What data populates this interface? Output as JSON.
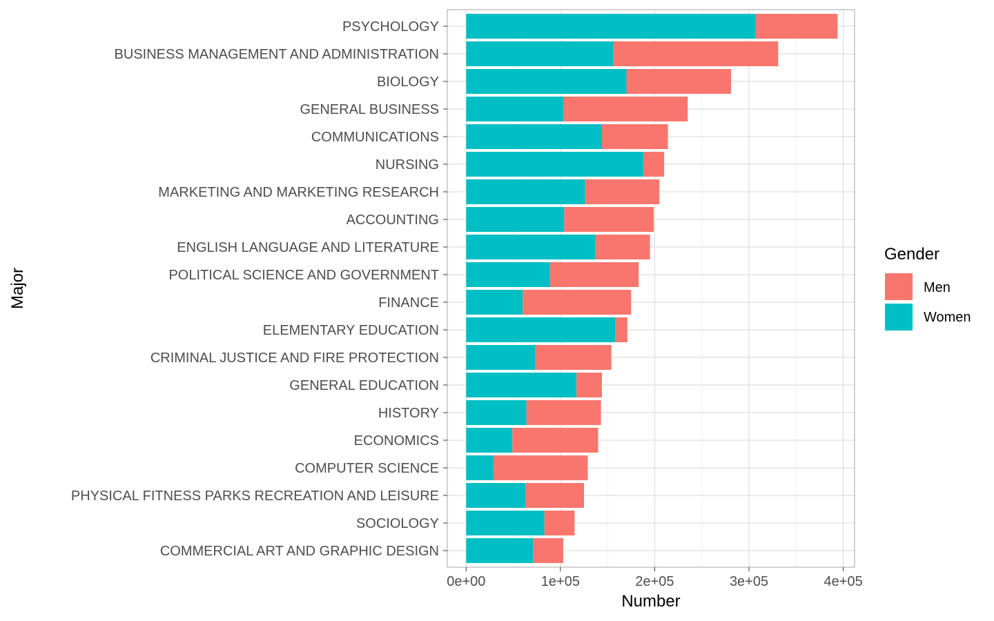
{
  "chart_data": {
    "type": "bar",
    "orientation": "horizontal",
    "stacked": true,
    "categories": [
      "PSYCHOLOGY",
      "BUSINESS MANAGEMENT AND ADMINISTRATION",
      "BIOLOGY",
      "GENERAL BUSINESS",
      "COMMUNICATIONS",
      "NURSING",
      "MARKETING AND MARKETING RESEARCH",
      "ACCOUNTING",
      "ENGLISH LANGUAGE AND LITERATURE",
      "POLITICAL SCIENCE AND GOVERNMENT",
      "FINANCE",
      "ELEMENTARY EDUCATION",
      "CRIMINAL JUSTICE AND FIRE PROTECTION",
      "GENERAL EDUCATION",
      "HISTORY",
      "ECONOMICS",
      "COMPUTER SCIENCE",
      "PHYSICAL FITNESS PARKS RECREATION AND LEISURE",
      "SOCIOLOGY",
      "COMMERCIAL ART AND GRAPHIC DESIGN"
    ],
    "series": [
      {
        "name": "Women",
        "color": "#00BFC4",
        "values": [
          307000,
          156000,
          170000,
          103000,
          144000,
          188000,
          126000,
          104000,
          137000,
          89000,
          60000,
          158000,
          73000,
          117000,
          64000,
          49000,
          29000,
          63000,
          83000,
          71000
        ]
      },
      {
        "name": "Men",
        "color": "#F8766D",
        "values": [
          87000,
          175000,
          111000,
          132000,
          70000,
          22000,
          79000,
          95000,
          58000,
          94000,
          115000,
          13000,
          81000,
          27000,
          79000,
          91000,
          100000,
          62000,
          32000,
          32000
        ]
      }
    ],
    "xlabel": "Number",
    "ylabel": "Major",
    "xlim": [
      -20000,
      412000
    ],
    "xticks": [
      0,
      100000,
      200000,
      300000,
      400000
    ],
    "xtick_labels": [
      "0e+00",
      "1e+05",
      "2e+05",
      "3e+05",
      "4e+05"
    ],
    "grid": true,
    "legend": {
      "title": "Gender",
      "position": "right",
      "items": [
        {
          "label": "Men",
          "color": "#F8766D"
        },
        {
          "label": "Women",
          "color": "#00BFC4"
        }
      ]
    }
  }
}
